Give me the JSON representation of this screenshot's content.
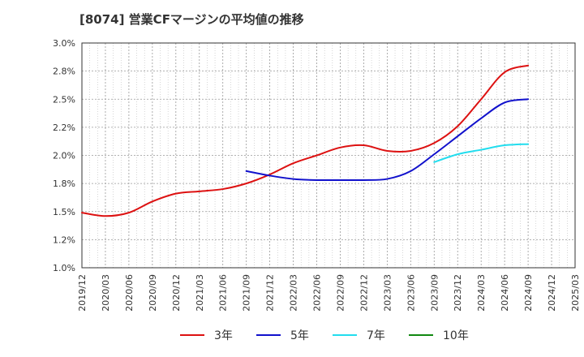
{
  "chart_data": {
    "type": "line",
    "title": "[8074]  営業CFマージンの平均値の推移",
    "x_ticks": [
      "2019/12",
      "2020/03",
      "2020/06",
      "2020/09",
      "2020/12",
      "2021/03",
      "2021/06",
      "2021/09",
      "2021/12",
      "2022/03",
      "2022/06",
      "2022/09",
      "2022/12",
      "2023/03",
      "2023/06",
      "2023/09",
      "2023/12",
      "2024/03",
      "2024/06",
      "2024/09",
      "2024/12",
      "2025/03"
    ],
    "y_ticks": [
      "1.0%",
      "1.2%",
      "1.5%",
      "1.8%",
      "2.0%",
      "2.2%",
      "2.5%",
      "2.8%",
      "3.0%"
    ],
    "ylim": [
      1.0,
      3.0
    ],
    "grid": true,
    "legend_position": "bottom",
    "series": [
      {
        "name": "3年",
        "color": "#dd1111",
        "x": [
          "2019/12",
          "2020/03",
          "2020/06",
          "2020/09",
          "2020/12",
          "2021/03",
          "2021/06",
          "2021/09",
          "2021/12",
          "2022/03",
          "2022/06",
          "2022/09",
          "2022/12",
          "2023/03",
          "2023/06",
          "2023/09",
          "2023/12",
          "2024/03",
          "2024/06",
          "2024/09"
        ],
        "values": [
          1.49,
          1.46,
          1.49,
          1.59,
          1.66,
          1.68,
          1.7,
          1.75,
          1.83,
          1.93,
          2.0,
          2.07,
          2.09,
          2.04,
          2.04,
          2.11,
          2.26,
          2.5,
          2.74,
          2.8
        ]
      },
      {
        "name": "5年",
        "color": "#1111cc",
        "x": [
          "2021/09",
          "2021/12",
          "2022/03",
          "2022/06",
          "2022/09",
          "2022/12",
          "2023/03",
          "2023/06",
          "2023/09",
          "2023/12",
          "2024/03",
          "2024/06",
          "2024/09"
        ],
        "values": [
          1.86,
          1.82,
          1.79,
          1.78,
          1.78,
          1.78,
          1.79,
          1.86,
          2.01,
          2.17,
          2.33,
          2.47,
          2.5
        ]
      },
      {
        "name": "7年",
        "color": "#22ddee",
        "x": [
          "2023/09",
          "2023/12",
          "2024/03",
          "2024/06",
          "2024/09"
        ],
        "values": [
          1.94,
          2.01,
          2.05,
          2.09,
          2.1
        ]
      },
      {
        "name": "10年",
        "color": "#118811",
        "x": [],
        "values": []
      }
    ]
  }
}
